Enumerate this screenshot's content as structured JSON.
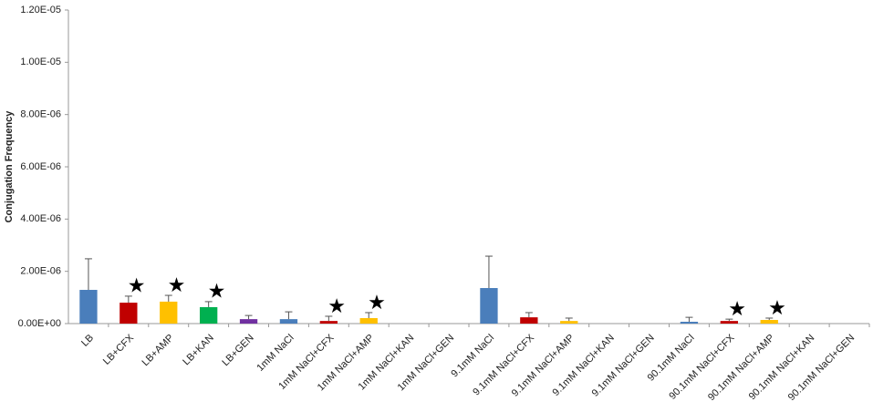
{
  "chart_data": {
    "type": "bar",
    "y_label": "Conjugation Frequency",
    "categories": [
      "LB",
      "LB+CFX",
      "LB+AMP",
      "LB+KAN",
      "LB+GEN",
      "1mM NaCl",
      "1mM NaCl+CFX",
      "1mM NaCl+AMP",
      "1mM NaCl+KAN",
      "1mM NaCl+GEN",
      "9.1mM NaCl",
      "9.1mM NaCl+CFX",
      "9.1mM NaCl+AMP",
      "9.1mM NaCl+KAN",
      "9.1mM NaCl+GEN",
      "90.1mM NaCl",
      "90.1mM NaCl+CFX",
      "90.1mM NaCl+AMP",
      "90.1mM NaCl+KAN",
      "90.1mM NaCl+GEN"
    ],
    "values": [
      1.29e-06,
      8e-07,
      8.4e-07,
      6.3e-07,
      1.7e-07,
      1.7e-07,
      1e-07,
      2.1e-07,
      0,
      0,
      1.36e-06,
      2.4e-07,
      1e-07,
      0,
      0,
      7e-08,
      1e-07,
      1.4e-07,
      0,
      0
    ],
    "errors": [
      1.19e-06,
      2.5e-07,
      2.4e-07,
      2.1e-07,
      1.4e-07,
      2.8e-07,
      1.8e-07,
      2.1e-07,
      null,
      null,
      1.22e-06,
      1.8e-07,
      1.1e-07,
      null,
      null,
      1.7e-07,
      7e-08,
      7e-08,
      null,
      null
    ],
    "colors": [
      "#4a7ebb",
      "#c00000",
      "#ffc000",
      "#00b050",
      "#7030a0",
      "#4a7ebb",
      "#c00000",
      "#ffc000",
      "#00b050",
      "#7030a0",
      "#4a7ebb",
      "#c00000",
      "#ffc000",
      "#00b050",
      "#7030a0",
      "#4a7ebb",
      "#c00000",
      "#ffc000",
      "#00b050",
      "#7030a0"
    ],
    "stars": [
      null,
      "★",
      "★",
      "★",
      null,
      null,
      "★",
      "★",
      null,
      null,
      null,
      null,
      null,
      null,
      null,
      null,
      "★",
      "★",
      null,
      null
    ],
    "ylim": [
      0,
      1.2e-05
    ],
    "yticks": [
      {
        "value": 0,
        "label": "0.00E+00"
      },
      {
        "value": 2e-06,
        "label": "2.00E-06"
      },
      {
        "value": 4e-06,
        "label": "4.00E-06"
      },
      {
        "value": 6e-06,
        "label": "6.00E-06"
      },
      {
        "value": 8e-06,
        "label": "8.00E-06"
      },
      {
        "value": 1e-05,
        "label": "1.00E-05"
      },
      {
        "value": 1.2e-05,
        "label": "1.20E-05"
      }
    ]
  }
}
